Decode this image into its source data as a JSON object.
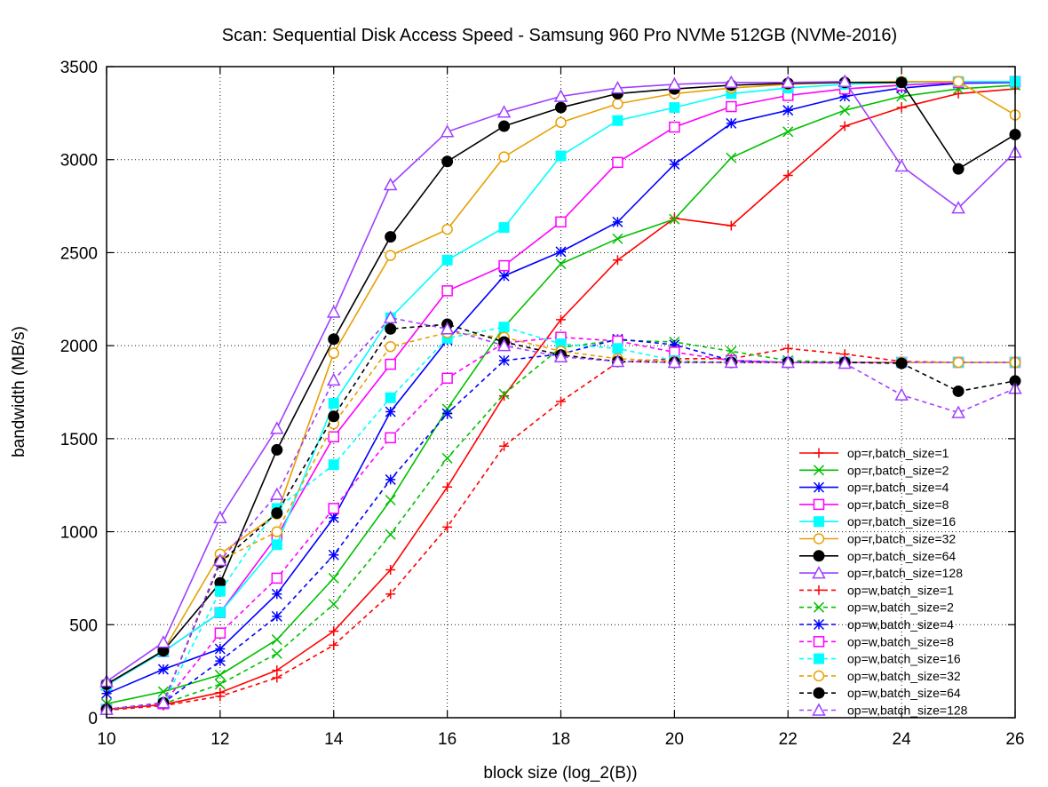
{
  "chart_data": {
    "type": "line",
    "title": "Scan: Sequential Disk Access Speed - Samsung 960 Pro NVMe 512GB (NVMe-2016)",
    "xlabel": "block size (log_2(B))",
    "ylabel": "bandwidth (MB/s)",
    "xlim": [
      10,
      26
    ],
    "ylim": [
      0,
      3500
    ],
    "xticks": [
      10,
      12,
      14,
      16,
      18,
      20,
      22,
      24,
      26
    ],
    "yticks": [
      0,
      500,
      1000,
      1500,
      2000,
      2500,
      3000,
      3500
    ],
    "grid": true,
    "legend_position": "bottom-right",
    "x": [
      10,
      11,
      12,
      13,
      14,
      15,
      16,
      17,
      18,
      19,
      20,
      21,
      22,
      23,
      24,
      25,
      26
    ],
    "series": [
      {
        "name": "op=r,batch_size=1",
        "color": "#ff0000",
        "dash": "solid",
        "marker": "plus",
        "values": [
          45,
          70,
          135,
          255,
          465,
          795,
          1240,
          1730,
          2140,
          2460,
          2685,
          2645,
          2915,
          3180,
          3280,
          3355,
          3380
        ]
      },
      {
        "name": "op=r,batch_size=2",
        "color": "#00c000",
        "dash": "solid",
        "marker": "cross",
        "values": [
          75,
          140,
          230,
          420,
          750,
          1170,
          1660,
          2100,
          2440,
          2575,
          2680,
          3010,
          3150,
          3265,
          3340,
          3380,
          3400
        ]
      },
      {
        "name": "op=r,batch_size=4",
        "color": "#0000ff",
        "dash": "solid",
        "marker": "star",
        "values": [
          130,
          260,
          370,
          665,
          1075,
          1645,
          2030,
          2375,
          2505,
          2665,
          2975,
          3195,
          3265,
          3340,
          3385,
          3410,
          3415
        ]
      },
      {
        "name": "op=r,batch_size=8",
        "color": "#ff00ff",
        "dash": "solid",
        "marker": "square",
        "values": [
          175,
          355,
          565,
          975,
          1510,
          1900,
          2295,
          2430,
          2665,
          2985,
          3175,
          3285,
          3345,
          3380,
          3400,
          3415,
          3420
        ]
      },
      {
        "name": "op=r,batch_size=16",
        "color": "#00ffff",
        "dash": "solid",
        "marker": "filled-square",
        "values": [
          175,
          355,
          565,
          930,
          1690,
          2150,
          2460,
          2635,
          3020,
          3210,
          3280,
          3355,
          3385,
          3405,
          3415,
          3420,
          3420
        ]
      },
      {
        "name": "op=r,batch_size=32",
        "color": "#e8a000",
        "dash": "solid",
        "marker": "circle",
        "values": [
          180,
          360,
          880,
          1095,
          1960,
          2485,
          2625,
          3015,
          3200,
          3300,
          3355,
          3385,
          3405,
          3415,
          3420,
          3420,
          3240
        ]
      },
      {
        "name": "op=r,batch_size=64",
        "color": "#000000",
        "dash": "solid",
        "marker": "filled-circle",
        "values": [
          180,
          360,
          725,
          1440,
          2035,
          2585,
          2990,
          3180,
          3280,
          3355,
          3380,
          3400,
          3410,
          3415,
          3415,
          2950,
          3135
        ]
      },
      {
        "name": "op=r,batch_size=128",
        "color": "#a040ff",
        "dash": "solid",
        "marker": "triangle",
        "values": [
          195,
          405,
          1075,
          1555,
          2180,
          2865,
          3150,
          3255,
          3340,
          3385,
          3405,
          3415,
          3415,
          3420,
          2965,
          2740,
          3040
        ]
      },
      {
        "name": "op=w,batch_size=1",
        "color": "#ff0000",
        "dash": "dashed",
        "marker": "plus",
        "values": [
          40,
          65,
          115,
          215,
          390,
          665,
          1025,
          1460,
          1700,
          1910,
          1930,
          1930,
          1985,
          1955,
          1915,
          1910,
          1910
        ]
      },
      {
        "name": "op=w,batch_size=2",
        "color": "#00c000",
        "dash": "dashed",
        "marker": "cross",
        "values": [
          45,
          75,
          180,
          345,
          610,
          985,
          1395,
          1740,
          1990,
          2030,
          2020,
          1970,
          1920,
          1910,
          1910,
          1910,
          1910
        ]
      },
      {
        "name": "op=w,batch_size=4",
        "color": "#0000ff",
        "dash": "dashed",
        "marker": "star",
        "values": [
          45,
          80,
          305,
          545,
          875,
          1280,
          1635,
          1920,
          1955,
          2035,
          2005,
          1920,
          1910,
          1910,
          1910,
          1910,
          1910
        ]
      },
      {
        "name": "op=w,batch_size=8",
        "color": "#ff00ff",
        "dash": "dashed",
        "marker": "square",
        "values": [
          45,
          75,
          455,
          750,
          1125,
          1505,
          1825,
          2015,
          2045,
          2025,
          1965,
          1920,
          1910,
          1910,
          1910,
          1910,
          1910
        ]
      },
      {
        "name": "op=w,batch_size=16",
        "color": "#00ffff",
        "dash": "dashed",
        "marker": "filled-square",
        "values": [
          45,
          80,
          680,
          1125,
          1360,
          1720,
          2040,
          2100,
          2010,
          1985,
          1920,
          1910,
          1910,
          1910,
          1910,
          1910,
          1910
        ]
      },
      {
        "name": "op=w,batch_size=32",
        "color": "#e8a000",
        "dash": "dashed",
        "marker": "circle",
        "values": [
          45,
          80,
          845,
          1000,
          1580,
          1995,
          2070,
          2045,
          1970,
          1930,
          1915,
          1910,
          1910,
          1910,
          1910,
          1910,
          1910
        ]
      },
      {
        "name": "op=w,batch_size=64",
        "color": "#000000",
        "dash": "dashed",
        "marker": "filled-circle",
        "values": [
          45,
          80,
          835,
          1100,
          1620,
          2090,
          2115,
          2020,
          1950,
          1915,
          1910,
          1910,
          1910,
          1910,
          1905,
          1755,
          1810
        ]
      },
      {
        "name": "op=w,batch_size=128",
        "color": "#a040ff",
        "dash": "dashed",
        "marker": "triangle",
        "values": [
          45,
          80,
          845,
          1200,
          1815,
          2150,
          2090,
          2000,
          1940,
          1915,
          1910,
          1910,
          1910,
          1905,
          1735,
          1640,
          1770
        ]
      }
    ]
  }
}
